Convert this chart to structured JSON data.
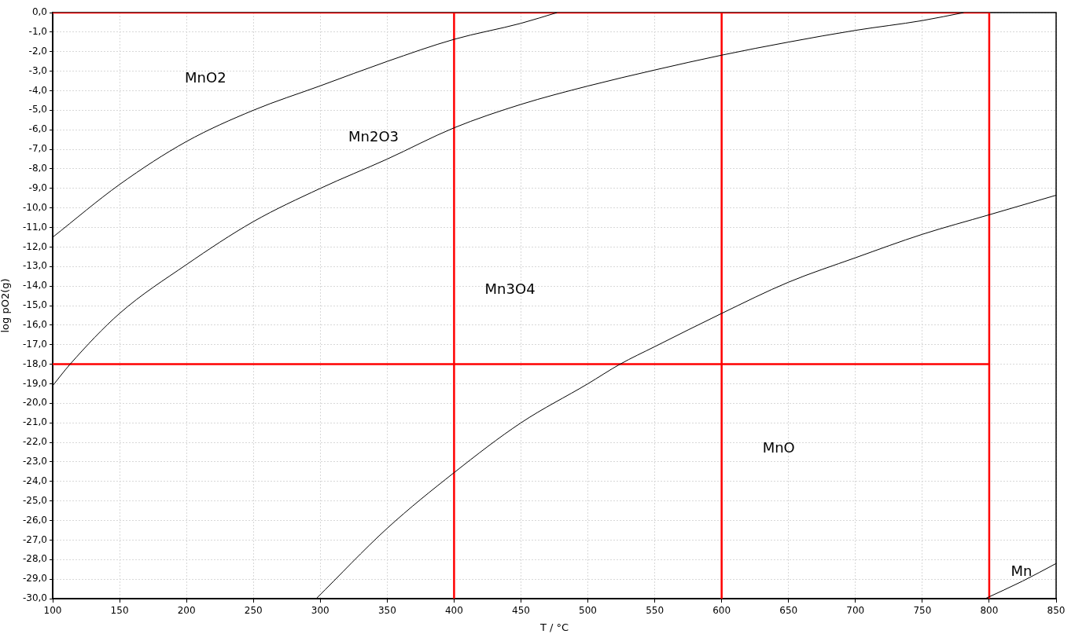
{
  "chart_data": {
    "type": "line",
    "xlabel": "T / °C",
    "ylabel": "log pO2(g)",
    "xlim": [
      100,
      850
    ],
    "ylim": [
      -30,
      0
    ],
    "xticks": [
      100,
      150,
      200,
      250,
      300,
      350,
      400,
      450,
      500,
      550,
      600,
      650,
      700,
      750,
      800,
      850
    ],
    "yticks": [
      {
        "value": 0,
        "label": "0,0"
      },
      {
        "value": -1,
        "label": "-1,0"
      },
      {
        "value": -2,
        "label": "-2,0"
      },
      {
        "value": -3,
        "label": "-3,0"
      },
      {
        "value": -4,
        "label": "-4,0"
      },
      {
        "value": -5,
        "label": "-5,0"
      },
      {
        "value": -6,
        "label": "-6,0"
      },
      {
        "value": -7,
        "label": "-7,0"
      },
      {
        "value": -8,
        "label": "-8,0"
      },
      {
        "value": -9,
        "label": "-9,0"
      },
      {
        "value": -10,
        "label": "-10,0"
      },
      {
        "value": -11,
        "label": "-11,0"
      },
      {
        "value": -12,
        "label": "-12,0"
      },
      {
        "value": -13,
        "label": "-13,0"
      },
      {
        "value": -14,
        "label": "-14,0"
      },
      {
        "value": -15,
        "label": "-15,0"
      },
      {
        "value": -16,
        "label": "-16,0"
      },
      {
        "value": -17,
        "label": "-17,0"
      },
      {
        "value": -18,
        "label": "-18,0"
      },
      {
        "value": -19,
        "label": "-19,0"
      },
      {
        "value": -20,
        "label": "-20,0"
      },
      {
        "value": -21,
        "label": "-21,0"
      },
      {
        "value": -22,
        "label": "-22,0"
      },
      {
        "value": -23,
        "label": "-23,0"
      },
      {
        "value": -24,
        "label": "-24,0"
      },
      {
        "value": -25,
        "label": "-25,0"
      },
      {
        "value": -26,
        "label": "-26,0"
      },
      {
        "value": -27,
        "label": "-27,0"
      },
      {
        "value": -28,
        "label": "-28,0"
      },
      {
        "value": -29,
        "label": "-29,0"
      },
      {
        "value": -30,
        "label": "-30,0"
      }
    ],
    "grid": true,
    "legend": false,
    "marker": "none",
    "line_style": "solid",
    "series": [
      {
        "color": "#000000",
        "x": [
          100,
          150,
          200,
          250,
          300,
          350,
          400,
          450,
          477
        ],
        "values": [
          -11.5,
          -8.8,
          -6.6,
          -5.0,
          -3.75,
          -2.5,
          -1.37,
          -0.55,
          0
        ]
      },
      {
        "color": "#000000",
        "x": [
          100,
          113,
          150,
          200,
          250,
          300,
          350,
          400,
          450,
          500,
          550,
          600,
          650,
          700,
          750,
          781
        ],
        "values": [
          -19.1,
          -18,
          -15.4,
          -12.9,
          -10.7,
          -9.0,
          -7.5,
          -5.9,
          -4.7,
          -3.76,
          -2.94,
          -2.18,
          -1.51,
          -0.91,
          -0.41,
          0
        ]
      },
      {
        "color": "#000000",
        "x": [
          297,
          350,
          400,
          450,
          500,
          524,
          550,
          600,
          650,
          700,
          750,
          800,
          850
        ],
        "values": [
          -30,
          -26.4,
          -23.55,
          -21.0,
          -19.0,
          -18,
          -17.1,
          -15.4,
          -13.8,
          -12.55,
          -11.35,
          -10.35,
          -9.35
        ]
      },
      {
        "color": "#000000",
        "x": [
          797,
          825,
          850
        ],
        "values": [
          -30,
          -29.1,
          -28.2
        ]
      },
      {
        "color": "#ff0000",
        "x": [
          100,
          800
        ],
        "values": [
          0,
          0
        ]
      },
      {
        "color": "#ff0000",
        "x": [
          100,
          800
        ],
        "values": [
          -18,
          -18
        ]
      },
      {
        "color": "#ff0000",
        "x": [
          400,
          400
        ],
        "values": [
          0,
          -30
        ]
      },
      {
        "color": "#ff0000",
        "x": [
          600,
          600
        ],
        "values": [
          0,
          -30
        ]
      },
      {
        "color": "#ff0000",
        "x": [
          800,
          800
        ],
        "values": [
          0,
          -30
        ]
      }
    ],
    "annotations": [
      "MnO2",
      "Mn2O3",
      "Mn3O4",
      "MnO",
      "Mn"
    ]
  }
}
